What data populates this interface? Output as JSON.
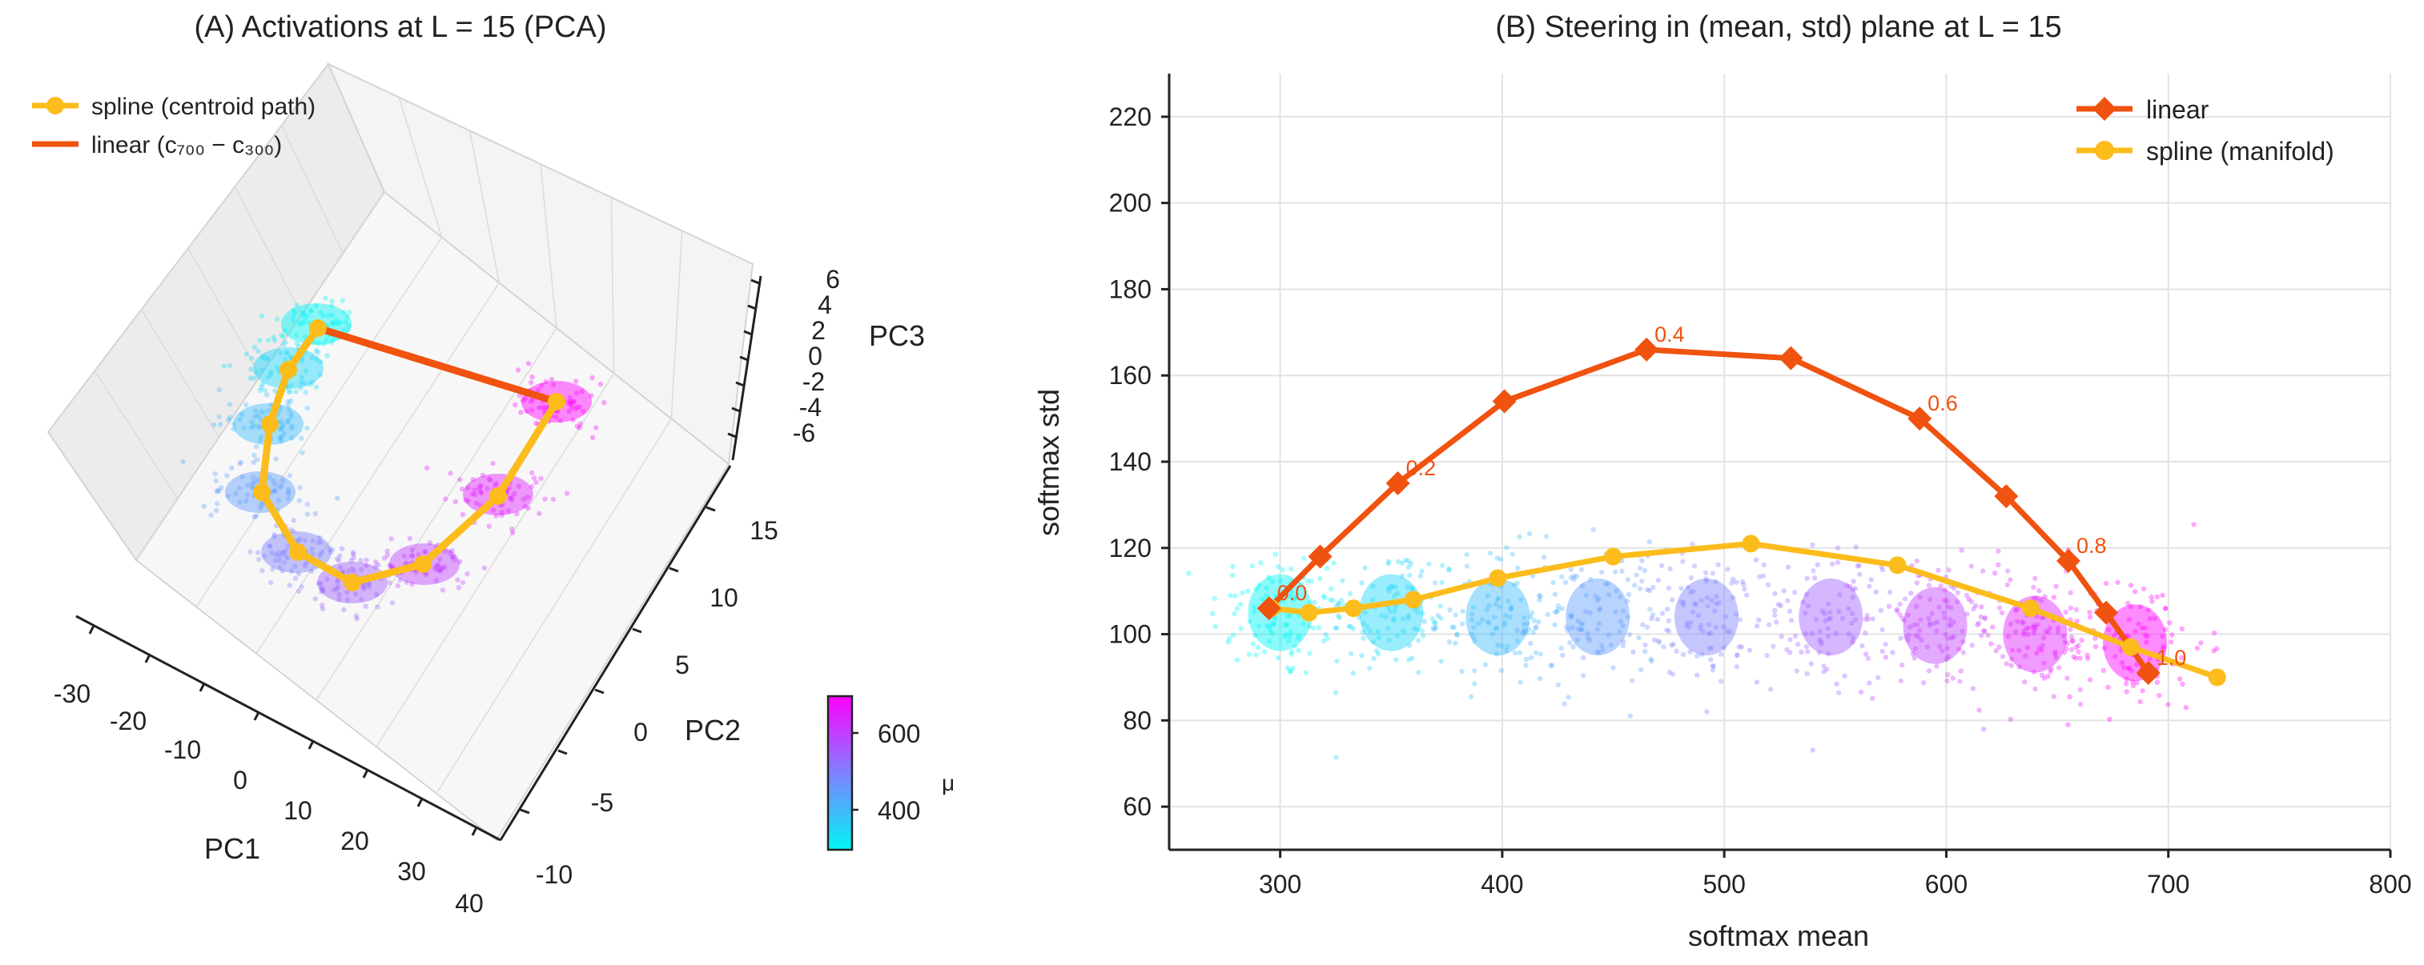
{
  "chart_data": [
    {
      "type": "scatter3d",
      "title": "(A) Activations at L = 15 (PCA)",
      "axes": {
        "x": {
          "label": "PC1",
          "ticks": [
            -30,
            -20,
            -10,
            0,
            10,
            20,
            30,
            40
          ]
        },
        "y": {
          "label": "PC2",
          "ticks": [
            -10,
            -5,
            0,
            5,
            10,
            15
          ]
        },
        "z": {
          "label": "PC3",
          "ticks": [
            -6,
            -4,
            -2,
            0,
            2,
            4,
            6
          ]
        }
      },
      "legend_position": "top-left",
      "colorbar": {
        "label": "μ",
        "range": [
          300,
          700
        ],
        "ticks": [
          400,
          600
        ],
        "colors": [
          "#00f5f5",
          "#8080ff",
          "#ff00ff"
        ]
      },
      "series": [
        {
          "name": "spline (centroid path)",
          "color": "#fbbc1c"
        },
        {
          "name": "linear (c₇₀₀ − c₃₀₀)",
          "color": "#f0520f"
        }
      ]
    },
    {
      "type": "scatter",
      "title": "(B) Steering in (mean, std) plane at L = 15",
      "xlabel": "softmax mean",
      "ylabel": "softmax std",
      "xlim": [
        250,
        800
      ],
      "ylim": [
        50,
        230
      ],
      "xticks": [
        300,
        400,
        500,
        600,
        700,
        800
      ],
      "yticks": [
        60,
        80,
        100,
        120,
        140,
        160,
        180,
        200,
        220
      ],
      "grid": true,
      "legend_position": "top-right",
      "series": [
        {
          "name": "linear",
          "color": "#f0520f",
          "marker": "diamond",
          "x": [
            295,
            318,
            353,
            401,
            465,
            530,
            588,
            627,
            655,
            672,
            691
          ],
          "y": [
            106,
            118,
            135,
            154,
            166,
            164,
            150,
            132,
            117,
            105,
            91
          ]
        },
        {
          "name": "spline (manifold)",
          "color": "#fbbc1c",
          "marker": "circle",
          "x": [
            296,
            313,
            333,
            360,
            398,
            450,
            512,
            578,
            638,
            683,
            722
          ],
          "y": [
            106,
            105,
            106,
            108,
            113,
            118,
            121,
            116,
            106,
            97,
            90
          ]
        }
      ],
      "annotations": [
        {
          "text": "0.0",
          "x": 295,
          "y": 106
        },
        {
          "text": "0.2",
          "x": 353,
          "y": 135
        },
        {
          "text": "0.4",
          "x": 465,
          "y": 166
        },
        {
          "text": "0.6",
          "x": 588,
          "y": 150
        },
        {
          "text": "0.8",
          "x": 655,
          "y": 117
        },
        {
          "text": "1.0",
          "x": 691,
          "y": 91
        }
      ],
      "clusters": [
        {
          "mu": 300,
          "mean": 300,
          "std": 105
        },
        {
          "mu": 350,
          "mean": 350,
          "std": 105
        },
        {
          "mu": 400,
          "mean": 398,
          "std": 104
        },
        {
          "mu": 450,
          "mean": 443,
          "std": 104
        },
        {
          "mu": 500,
          "mean": 492,
          "std": 104
        },
        {
          "mu": 550,
          "mean": 548,
          "std": 104
        },
        {
          "mu": 600,
          "mean": 595,
          "std": 102
        },
        {
          "mu": 650,
          "mean": 640,
          "std": 100
        },
        {
          "mu": 700,
          "mean": 685,
          "std": 98
        }
      ]
    }
  ]
}
